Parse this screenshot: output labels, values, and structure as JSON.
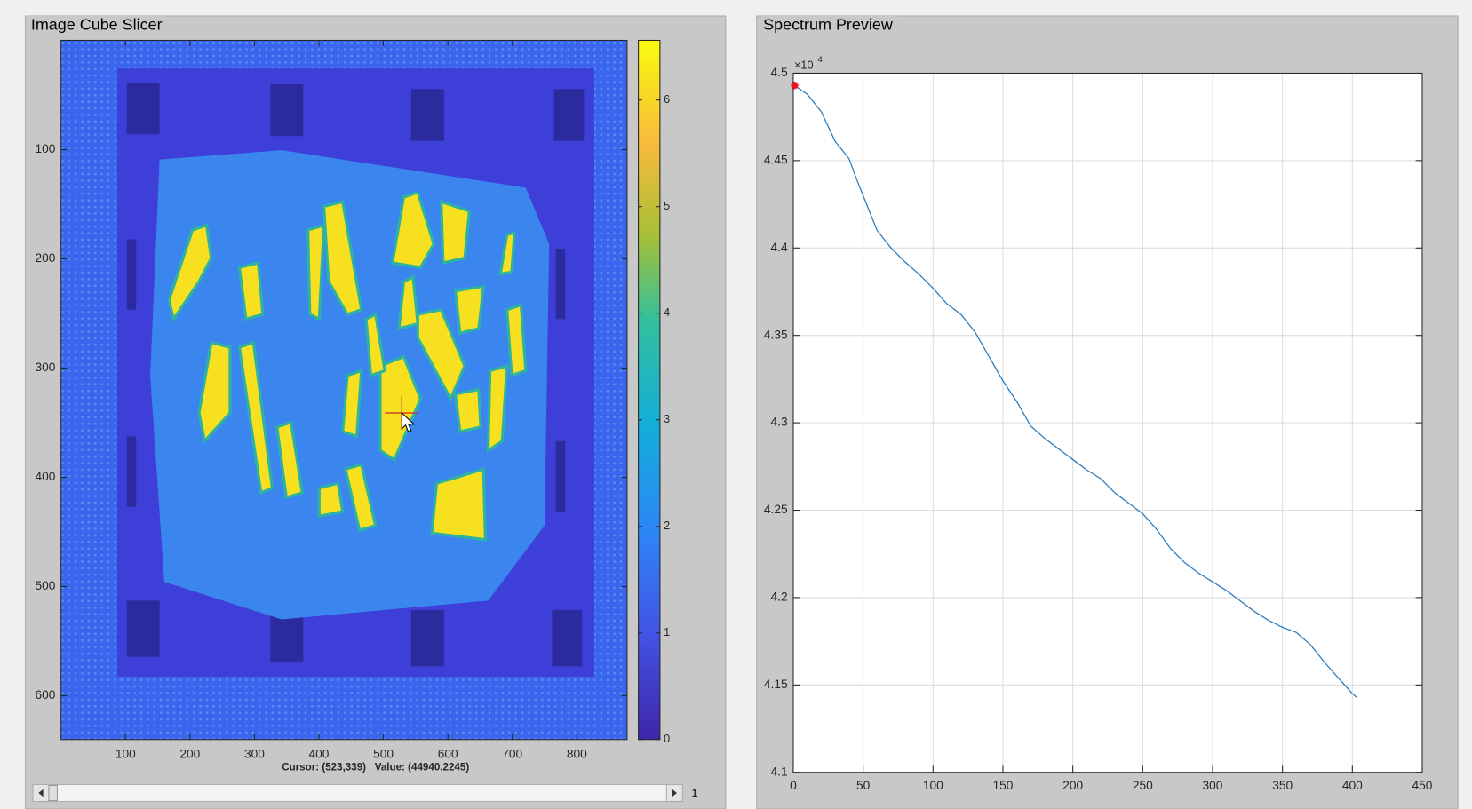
{
  "image_panel": {
    "title": "Image Cube Slicer",
    "xlim": [
      0,
      878
    ],
    "ylim": [
      0,
      640
    ],
    "xticks": [
      100,
      200,
      300,
      400,
      500,
      600,
      700,
      800
    ],
    "yticks": [
      100,
      200,
      300,
      400,
      500,
      600
    ],
    "colorbar": {
      "lim": [
        0,
        6.56
      ],
      "ticks": [
        0,
        1,
        2,
        3,
        4,
        5,
        6
      ]
    },
    "cursor_text": "Cursor: (523,339)   Value: (44940.2245)",
    "slider_label": "1"
  },
  "chart_data": {
    "type": "line",
    "title": "Spectrum Preview",
    "exponent": {
      "base": "×10",
      "power": "4"
    },
    "x": [
      1,
      10,
      20,
      30,
      40,
      45,
      50,
      60,
      70,
      80,
      90,
      100,
      110,
      120,
      130,
      140,
      150,
      160,
      170,
      180,
      190,
      200,
      210,
      220,
      230,
      240,
      250,
      260,
      270,
      280,
      290,
      300,
      310,
      320,
      330,
      340,
      350,
      360,
      370,
      380,
      390,
      400,
      403
    ],
    "values": [
      4.493,
      4.488,
      4.478,
      4.461,
      4.451,
      4.44,
      4.43,
      4.41,
      4.4,
      4.392,
      4.385,
      4.377,
      4.368,
      4.362,
      4.352,
      4.338,
      4.324,
      4.312,
      4.298,
      4.291,
      4.285,
      4.279,
      4.273,
      4.268,
      4.26,
      4.254,
      4.248,
      4.239,
      4.228,
      4.22,
      4.214,
      4.209,
      4.204,
      4.198,
      4.192,
      4.187,
      4.183,
      4.18,
      4.173,
      4.163,
      4.154,
      4.145,
      4.143
    ],
    "color": "#2a7bbd",
    "highlight": {
      "x": 1,
      "y": 4.493,
      "color": "#e8141b"
    },
    "xlim": [
      0,
      450
    ],
    "ylim": [
      4.1,
      4.5
    ],
    "xticks": [
      0,
      50,
      100,
      150,
      200,
      250,
      300,
      350,
      400,
      450
    ],
    "yticks": [
      4.1,
      4.15,
      4.2,
      4.25,
      4.3,
      4.35,
      4.4,
      4.45,
      4.5
    ],
    "grid": true
  }
}
